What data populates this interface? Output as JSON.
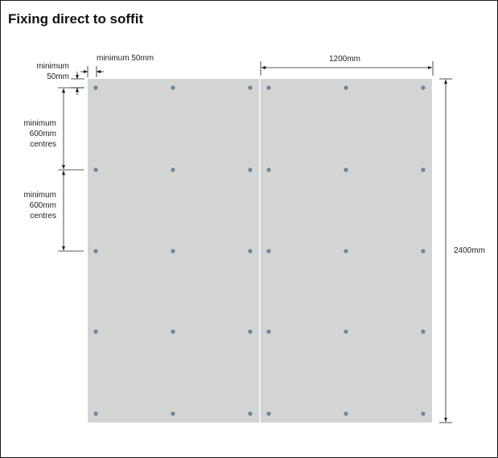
{
  "title": "Fixing direct to soffit",
  "labels": {
    "min_edge_vertical_line1": "minimum",
    "min_edge_vertical_line2": "50mm",
    "min_edge_horizontal": "minimum 50mm",
    "sheet_width": "1200mm",
    "sheet_height": "2400mm",
    "centres_upper_line1": "minimum",
    "centres_upper_line2": "600mm",
    "centres_upper_line3": "centres",
    "centres_lower_line1": "minimum",
    "centres_lower_line2": "600mm",
    "centres_lower_line3": "centres"
  },
  "colors": {
    "board": "#d3d5d5",
    "fixing": "#6f8693",
    "line": "#222222",
    "joint": "#f2f2f2"
  },
  "boards": {
    "count": 2,
    "fixing_columns_per_board": 3,
    "fixing_rows": 5
  }
}
